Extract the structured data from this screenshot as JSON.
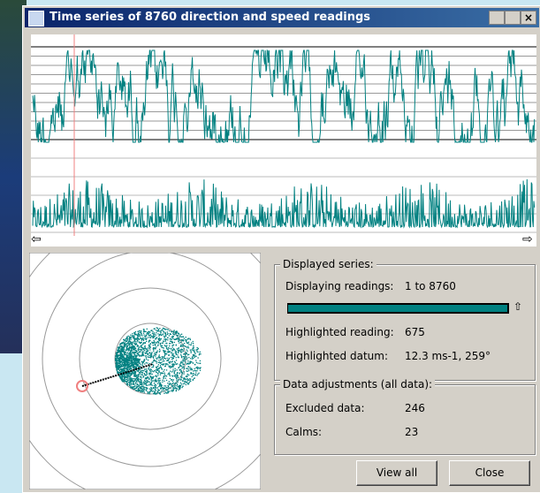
{
  "window": {
    "title": "Time series of 8760 direction and speed readings"
  },
  "displayed_series": {
    "heading": "Displayed series:",
    "range_label": "Displaying readings:",
    "range_value": "1 to 8760",
    "reading_label": "Highlighted reading:",
    "reading_value": "675",
    "datum_label": "Highlighted datum:",
    "datum_value": "12.3 ms-1, 259°"
  },
  "adjustments": {
    "heading": "Data adjustments (all data):",
    "excluded_label": "Excluded data:",
    "excluded_value": "246",
    "calms_label": "Calms:",
    "calms_value": "23"
  },
  "buttons": {
    "view_all": "View all",
    "close": "Close"
  }
}
